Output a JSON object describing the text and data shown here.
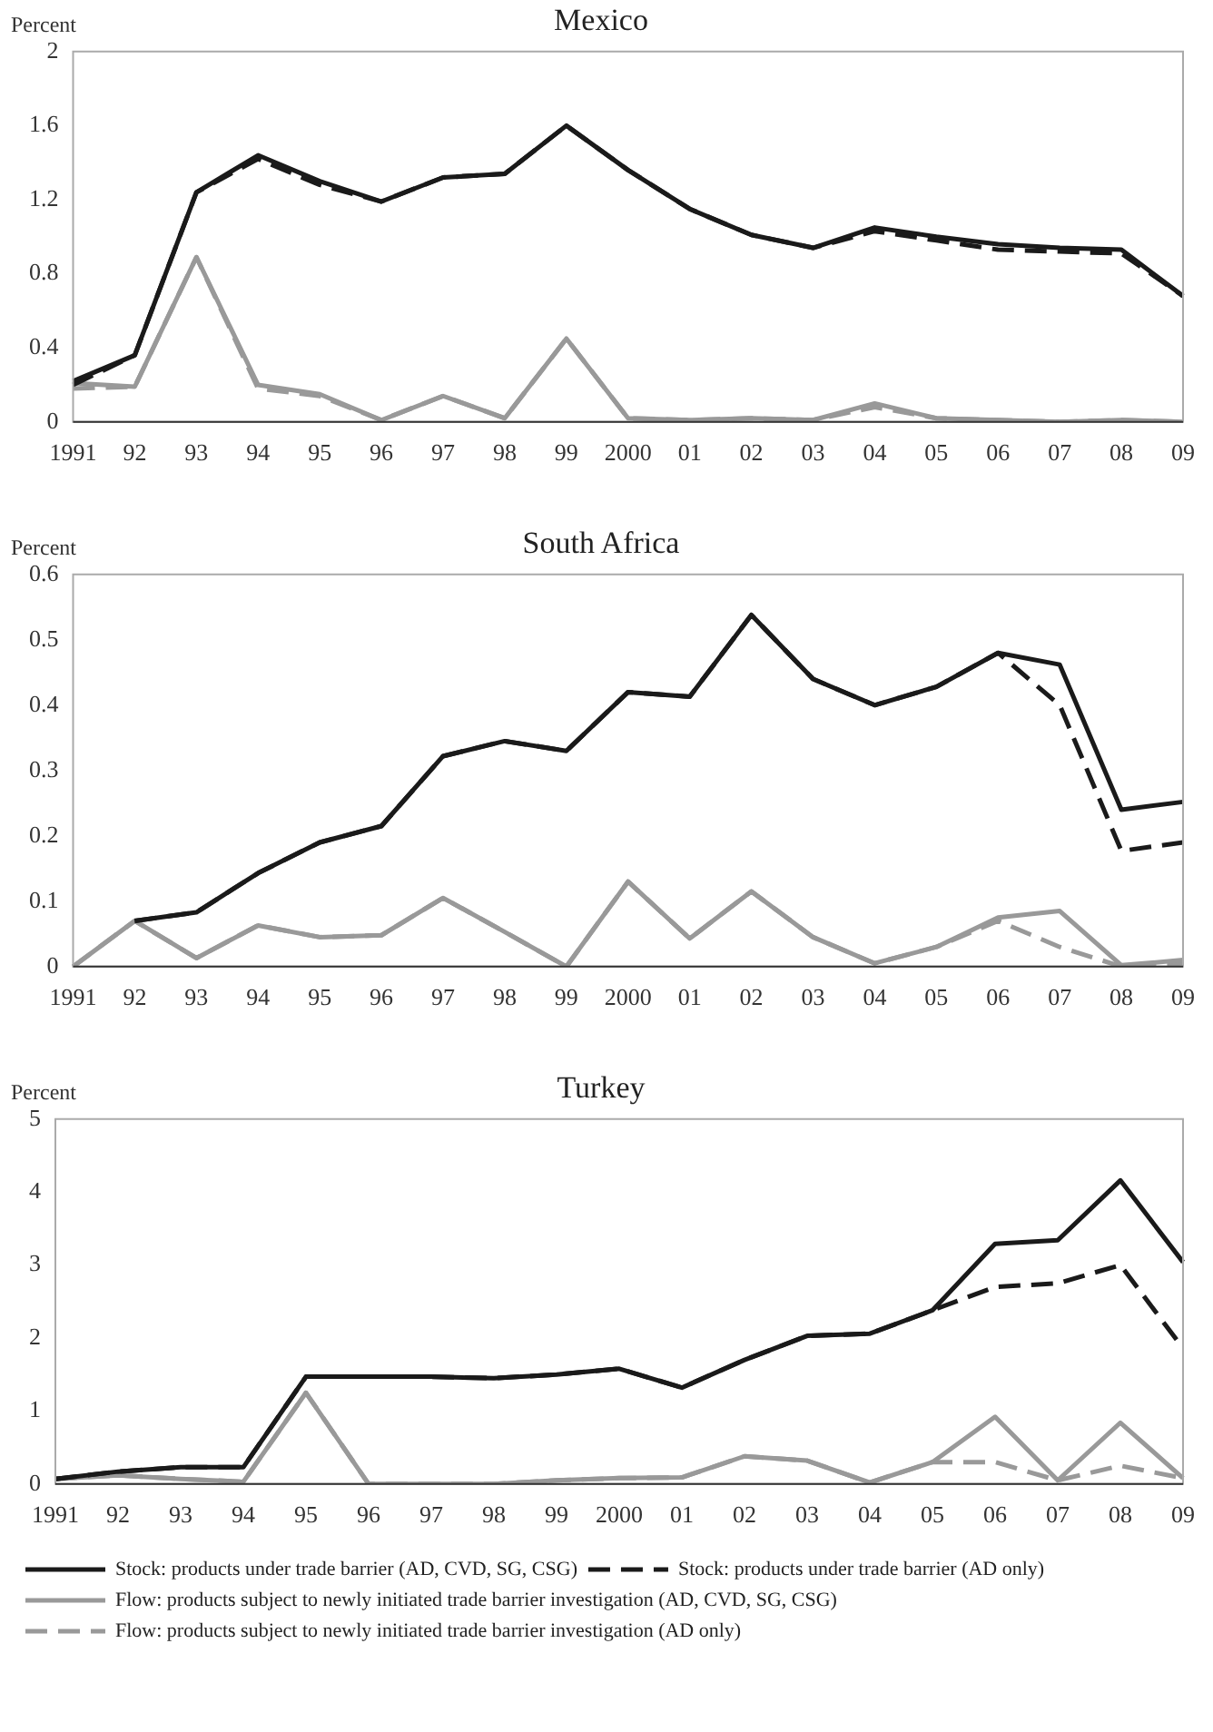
{
  "chart_data": [
    {
      "type": "line",
      "title": "Mexico",
      "ylabel": "Percent",
      "categories": [
        "1991",
        "92",
        "93",
        "94",
        "95",
        "96",
        "97",
        "98",
        "99",
        "2000",
        "01",
        "02",
        "03",
        "04",
        "05",
        "06",
        "07",
        "08",
        "09"
      ],
      "ylim": [
        0,
        2
      ],
      "yticks": [
        0,
        0.4,
        0.8,
        1.2,
        1.6,
        2
      ],
      "grid": false,
      "legend": false,
      "marker": "none",
      "series": [
        {
          "color": "#1a1a1a",
          "line_style": "solid",
          "values": [
            0.22,
            0.36,
            1.24,
            1.44,
            1.3,
            1.19,
            1.32,
            1.34,
            1.6,
            1.36,
            1.15,
            1.01,
            0.94,
            1.05,
            1.0,
            0.96,
            0.94,
            0.93,
            0.68
          ]
        },
        {
          "color": "#1a1a1a",
          "line_style": "dashed",
          "values": [
            0.2,
            0.36,
            1.24,
            1.42,
            1.28,
            1.19,
            1.32,
            1.34,
            1.6,
            1.36,
            1.15,
            1.01,
            0.94,
            1.03,
            0.98,
            0.93,
            0.92,
            0.91,
            0.68
          ]
        },
        {
          "color": "#999999",
          "line_style": "solid",
          "values": [
            0.21,
            0.19,
            0.89,
            0.2,
            0.15,
            0.01,
            0.14,
            0.02,
            0.45,
            0.02,
            0.01,
            0.02,
            0.01,
            0.1,
            0.02,
            0.01,
            0.0,
            0.01,
            0.0
          ]
        },
        {
          "color": "#999999",
          "line_style": "dashed",
          "values": [
            0.18,
            0.19,
            0.89,
            0.18,
            0.14,
            0.01,
            0.14,
            0.02,
            0.45,
            0.02,
            0.01,
            0.02,
            0.01,
            0.08,
            0.02,
            0.01,
            0.0,
            0.01,
            0.0
          ]
        }
      ]
    },
    {
      "type": "line",
      "title": "South Africa",
      "ylabel": "Percent",
      "categories": [
        "1991",
        "92",
        "93",
        "94",
        "95",
        "96",
        "97",
        "98",
        "99",
        "2000",
        "01",
        "02",
        "03",
        "04",
        "05",
        "06",
        "07",
        "08",
        "09"
      ],
      "ylim": [
        0,
        0.6
      ],
      "yticks": [
        0,
        0.1,
        0.2,
        0.3,
        0.4,
        0.5,
        0.6
      ],
      "grid": false,
      "legend": false,
      "marker": "none",
      "series": [
        {
          "color": "#1a1a1a",
          "line_style": "solid",
          "values": [
            null,
            0.07,
            0.083,
            0.143,
            0.19,
            0.215,
            0.322,
            0.345,
            0.33,
            0.42,
            0.413,
            0.538,
            0.44,
            0.4,
            0.428,
            0.48,
            0.462,
            0.24,
            0.252
          ]
        },
        {
          "color": "#1a1a1a",
          "line_style": "dashed",
          "values": [
            null,
            0.07,
            0.083,
            0.143,
            0.19,
            0.215,
            0.322,
            0.345,
            0.33,
            0.42,
            0.413,
            0.538,
            0.44,
            0.4,
            0.428,
            0.48,
            0.4,
            0.177,
            0.19
          ]
        },
        {
          "color": "#999999",
          "line_style": "solid",
          "values": [
            0,
            0.07,
            0.013,
            0.063,
            0.045,
            0.048,
            0.105,
            0.053,
            0,
            0.13,
            0.043,
            0.115,
            0.045,
            0.005,
            0.03,
            0.075,
            0.085,
            0.002,
            0.01
          ]
        },
        {
          "color": "#999999",
          "line_style": "dashed",
          "values": [
            0,
            0.07,
            0.013,
            0.063,
            0.045,
            0.048,
            0.105,
            0.053,
            0,
            0.13,
            0.043,
            0.115,
            0.045,
            0.005,
            0.03,
            0.07,
            0.03,
            0,
            0.005
          ]
        }
      ]
    },
    {
      "type": "line",
      "title": "Turkey",
      "ylabel": "Percent",
      "categories": [
        "1991",
        "92",
        "93",
        "94",
        "95",
        "96",
        "97",
        "98",
        "99",
        "2000",
        "01",
        "02",
        "03",
        "04",
        "05",
        "06",
        "07",
        "08",
        "09"
      ],
      "ylim": [
        0,
        5
      ],
      "yticks": [
        0,
        1,
        2,
        3,
        4,
        5
      ],
      "grid": false,
      "legend": "bottom",
      "marker": "none",
      "series": [
        {
          "name": "Stock: products under trade barrier (AD, CVD, SG, CSG)",
          "color": "#1a1a1a",
          "line_style": "solid",
          "values": [
            0.07,
            0.17,
            0.23,
            0.23,
            1.47,
            1.47,
            1.47,
            1.45,
            1.5,
            1.58,
            1.32,
            1.7,
            2.03,
            2.06,
            2.38,
            3.29,
            3.34,
            4.16,
            3.04
          ]
        },
        {
          "name": "Stock: products under trade barrier (AD only)",
          "color": "#1a1a1a",
          "line_style": "dashed",
          "values": [
            0.07,
            0.17,
            0.23,
            0.23,
            1.47,
            1.47,
            1.47,
            1.45,
            1.5,
            1.58,
            1.32,
            1.7,
            2.03,
            2.06,
            2.38,
            2.7,
            2.75,
            3.0,
            1.86
          ]
        },
        {
          "name": "Flow: products subject to newly initiated trade barrier investigation (AD, CVD, SG, CSG)",
          "color": "#999999",
          "line_style": "solid",
          "values": [
            0.07,
            0.12,
            0.07,
            0.03,
            1.25,
            0,
            0,
            0,
            0.05,
            0.08,
            0.09,
            0.38,
            0.32,
            0.02,
            0.3,
            0.92,
            0.05,
            0.84,
            0.08
          ]
        },
        {
          "name": "Flow: products subject to newly initiated trade barrier investigation (AD only)",
          "color": "#999999",
          "line_style": "dashed",
          "values": [
            0.07,
            0.12,
            0.07,
            0.03,
            1.25,
            0,
            0,
            0,
            0.05,
            0.08,
            0.09,
            0.38,
            0.32,
            0.02,
            0.3,
            0.3,
            0.05,
            0.25,
            0.08
          ]
        }
      ]
    }
  ]
}
